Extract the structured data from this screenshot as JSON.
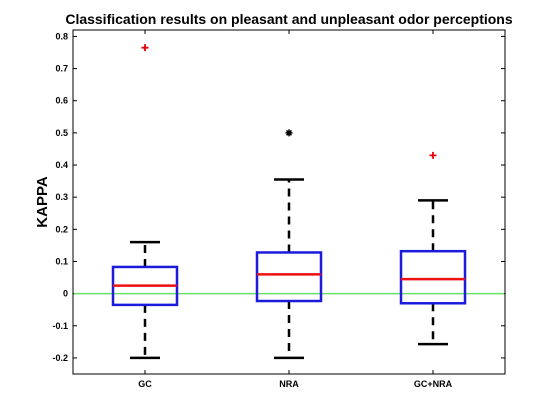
{
  "chart_data": {
    "type": "boxplot",
    "title": "Classification results on pleasant and unpleasant odor perceptions",
    "xlabel": "",
    "ylabel": "KAPPA",
    "ylim": [
      -0.25,
      0.82
    ],
    "yticks": [
      -0.2,
      -0.1,
      0,
      0.1,
      0.2,
      0.3,
      0.4,
      0.5,
      0.6,
      0.7,
      0.8
    ],
    "ytick_labels": [
      "-0.2",
      "-0.1",
      "0",
      "0.1",
      "0.2",
      "0.3",
      "0.4",
      "0.5",
      "0.6",
      "0.7",
      "0.8"
    ],
    "categories": [
      "GC",
      "NRA",
      "GC+NRA"
    ],
    "boxes": [
      {
        "category": "GC",
        "whisker_low": -0.2,
        "q1": -0.035,
        "median": 0.025,
        "q3": 0.083,
        "whisker_high": 0.16,
        "outliers": [
          0.765
        ],
        "outlier_marker": "plus",
        "outlier_color": "#e8000b"
      },
      {
        "category": "NRA",
        "whisker_low": -0.2,
        "q1": -0.023,
        "median": 0.06,
        "q3": 0.128,
        "whisker_high": 0.355,
        "outliers": [
          0.5
        ],
        "outlier_marker": "asterisk",
        "outlier_color": "#000000"
      },
      {
        "category": "GC+NRA",
        "whisker_low": -0.157,
        "q1": -0.03,
        "median": 0.045,
        "q3": 0.132,
        "whisker_high": 0.29,
        "outliers": [
          0.43
        ],
        "outlier_marker": "plus",
        "outlier_color": "#e8000b"
      }
    ],
    "reference_line": {
      "y": 0,
      "color": "#66e266"
    },
    "colors": {
      "box": "#1b1bdb",
      "median": "#ee1111",
      "whisker": "#000000"
    },
    "grid": false,
    "legend": "none"
  }
}
